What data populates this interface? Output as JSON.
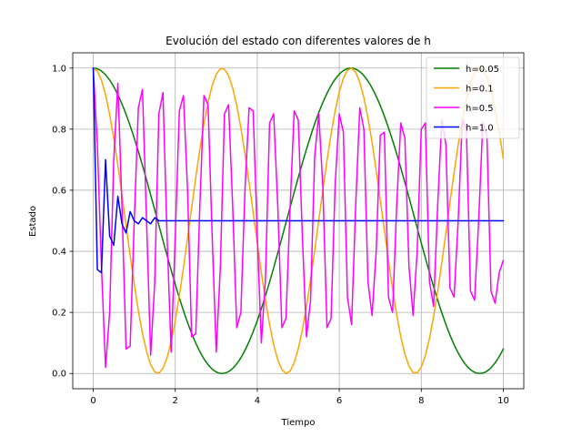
{
  "chart_data": {
    "type": "line",
    "title": "Evolución del estado con diferentes valores de h",
    "xlabel": "Tiempo",
    "ylabel": "Estado",
    "xlim": [
      -0.5,
      10.5
    ],
    "ylim": [
      -0.05,
      1.05
    ],
    "xticks": [
      0,
      2,
      4,
      6,
      8,
      10
    ],
    "yticks": [
      0.0,
      0.2,
      0.4,
      0.6,
      0.8,
      1.0
    ],
    "xtick_labels": [
      "0",
      "2",
      "4",
      "6",
      "8",
      "10"
    ],
    "ytick_labels": [
      "0.0",
      "0.2",
      "0.4",
      "0.6",
      "0.8",
      "1.0"
    ],
    "grid": true,
    "legend_position": "top-right",
    "series": [
      {
        "name": "h=0.05",
        "color": "#008000",
        "formula": "0.5+0.5*cos(t)",
        "x_start": 0,
        "x_end": 10,
        "step": 0.05
      },
      {
        "name": "h=0.1",
        "color": "#ffa500",
        "formula": "0.5+0.5*cos(2t)",
        "x_start": 0,
        "x_end": 10,
        "step": 0.1
      },
      {
        "name": "h=0.5",
        "color": "#ff00ff",
        "x": [
          0,
          0.1,
          0.2,
          0.3,
          0.4,
          0.5,
          0.6,
          0.7,
          0.8,
          0.9,
          1.0,
          1.1,
          1.2,
          1.3,
          1.4,
          1.5,
          1.6,
          1.7,
          1.8,
          1.9,
          2.0,
          2.1,
          2.2,
          2.3,
          2.4,
          2.5,
          2.6,
          2.7,
          2.8,
          2.9,
          3.0,
          3.1,
          3.2,
          3.3,
          3.4,
          3.5,
          3.6,
          3.7,
          3.8,
          3.9,
          4.0,
          4.1,
          4.2,
          4.3,
          4.4,
          4.5,
          4.6,
          4.7,
          4.8,
          4.9,
          5.0,
          5.1,
          5.2,
          5.3,
          5.4,
          5.5,
          5.6,
          5.7,
          5.8,
          5.9,
          6.0,
          6.1,
          6.2,
          6.3,
          6.4,
          6.5,
          6.6,
          6.7,
          6.8,
          6.9,
          7.0,
          7.1,
          7.2,
          7.3,
          7.4,
          7.5,
          7.6,
          7.7,
          7.8,
          7.9,
          8.0,
          8.1,
          8.2,
          8.3,
          8.4,
          8.5,
          8.6,
          8.7,
          8.8,
          8.9,
          9.0,
          9.1,
          9.2,
          9.3,
          9.4,
          9.5,
          9.6,
          9.7,
          9.8,
          9.9,
          10.0
        ],
        "y": [
          1.0,
          0.75,
          0.35,
          0.02,
          0.2,
          0.7,
          0.95,
          0.55,
          0.08,
          0.09,
          0.5,
          0.87,
          0.93,
          0.5,
          0.06,
          0.3,
          0.85,
          0.92,
          0.45,
          0.07,
          0.45,
          0.86,
          0.91,
          0.6,
          0.12,
          0.13,
          0.55,
          0.91,
          0.88,
          0.45,
          0.07,
          0.35,
          0.85,
          0.88,
          0.55,
          0.15,
          0.2,
          0.6,
          0.87,
          0.86,
          0.45,
          0.1,
          0.31,
          0.82,
          0.85,
          0.55,
          0.15,
          0.18,
          0.54,
          0.86,
          0.83,
          0.45,
          0.12,
          0.24,
          0.71,
          0.85,
          0.61,
          0.15,
          0.18,
          0.62,
          0.85,
          0.79,
          0.25,
          0.16,
          0.55,
          0.87,
          0.8,
          0.3,
          0.19,
          0.4,
          0.78,
          0.79,
          0.25,
          0.2,
          0.55,
          0.82,
          0.77,
          0.35,
          0.19,
          0.4,
          0.8,
          0.82,
          0.3,
          0.22,
          0.55,
          0.83,
          0.75,
          0.28,
          0.25,
          0.5,
          0.83,
          0.8,
          0.27,
          0.24,
          0.5,
          0.82,
          0.78,
          0.27,
          0.23,
          0.33,
          0.37
        ]
      },
      {
        "name": "h=1.0",
        "color": "#0000ff",
        "x": [
          0,
          0.1,
          0.2,
          0.3,
          0.4,
          0.5,
          0.6,
          0.7,
          0.8,
          0.9,
          1.0,
          1.1,
          1.2,
          1.3,
          1.4,
          1.5,
          1.6,
          1.7,
          1.8,
          1.9,
          2.0,
          2.2,
          2.4,
          2.6,
          2.8,
          3.0,
          4.0,
          5.0,
          6.0,
          7.0,
          8.0,
          9.0,
          10.0
        ],
        "y": [
          1.0,
          0.34,
          0.33,
          0.7,
          0.45,
          0.42,
          0.58,
          0.49,
          0.46,
          0.53,
          0.5,
          0.49,
          0.51,
          0.5,
          0.49,
          0.51,
          0.5,
          0.5,
          0.5,
          0.5,
          0.5,
          0.5,
          0.5,
          0.5,
          0.5,
          0.5,
          0.5,
          0.5,
          0.5,
          0.5,
          0.5,
          0.5,
          0.5
        ]
      }
    ]
  }
}
